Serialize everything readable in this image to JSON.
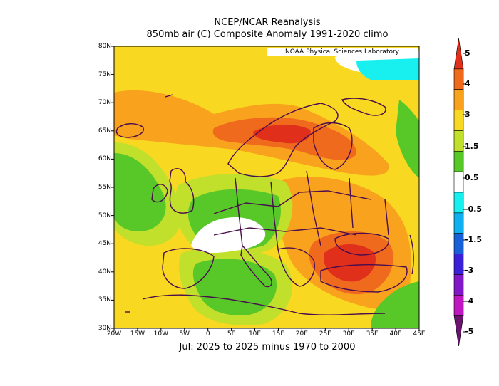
{
  "title": "NCEP/NCAR Reanalysis",
  "subtitle": "850mb air (C) Composite Anomaly 1991-2020 climo",
  "period": "Jul: 2025 to 2025 minus 1970 to 2000",
  "credit": "NOAA Physical Sciences Laboratory",
  "lat_labels": [
    "80N",
    "75N",
    "70N",
    "65N",
    "60N",
    "55N",
    "50N",
    "45N",
    "40N",
    "35N",
    "30N"
  ],
  "lon_labels": [
    "20W",
    "15W",
    "10W",
    "5W",
    "0",
    "5E",
    "10E",
    "15E",
    "20E",
    "25E",
    "30E",
    "35E",
    "40E",
    "45E"
  ],
  "colorbar": {
    "labels": [
      "5",
      "4",
      "3",
      "1.5",
      "0.5",
      "-0.5",
      "-1.5",
      "-3",
      "-4",
      "-5"
    ],
    "colors": [
      "#e0301c",
      "#f06a1e",
      "#f8a21e",
      "#f8d820",
      "#c0e02c",
      "#58c828",
      "#ffffff",
      "#18f0f0",
      "#10b0f0",
      "#1860d8",
      "#3a20d8",
      "#8018c8",
      "#c018c0",
      "#6a1470"
    ]
  },
  "chart_data": {
    "type": "heatmap",
    "title": "NCEP/NCAR Reanalysis",
    "subtitle": "850mb air (C) Composite Anomaly 1991-2020 climo",
    "xlabel": "Jul: 2025 to 2025 minus 1970 to 2000",
    "xlim": [
      -20,
      45
    ],
    "ylim": [
      30,
      80
    ],
    "units": "C",
    "levels": [
      -5,
      -4,
      -3,
      -1.5,
      -0.5,
      0.5,
      1.5,
      3,
      4,
      5
    ],
    "regions": [
      {
        "area": "Scandinavia / Finland",
        "anomaly_range": "4 to 5"
      },
      {
        "area": "Greece / Western Turkey",
        "anomaly_range": "4 to 5"
      },
      {
        "area": "Eastern Europe / Balkans",
        "anomaly_range": "3 to 4"
      },
      {
        "area": "Alps / Central Europe",
        "anomaly_range": "-0.5 to 0.5"
      },
      {
        "area": "Iberia / North Africa",
        "anomaly_range": "1.5 to 3"
      },
      {
        "area": "Central Mediterranean",
        "anomaly_range": "0.5 to 1.5"
      },
      {
        "area": "Arctic near 40-45E, 75N",
        "anomaly_range": "-1.5 to -0.5"
      }
    ]
  }
}
